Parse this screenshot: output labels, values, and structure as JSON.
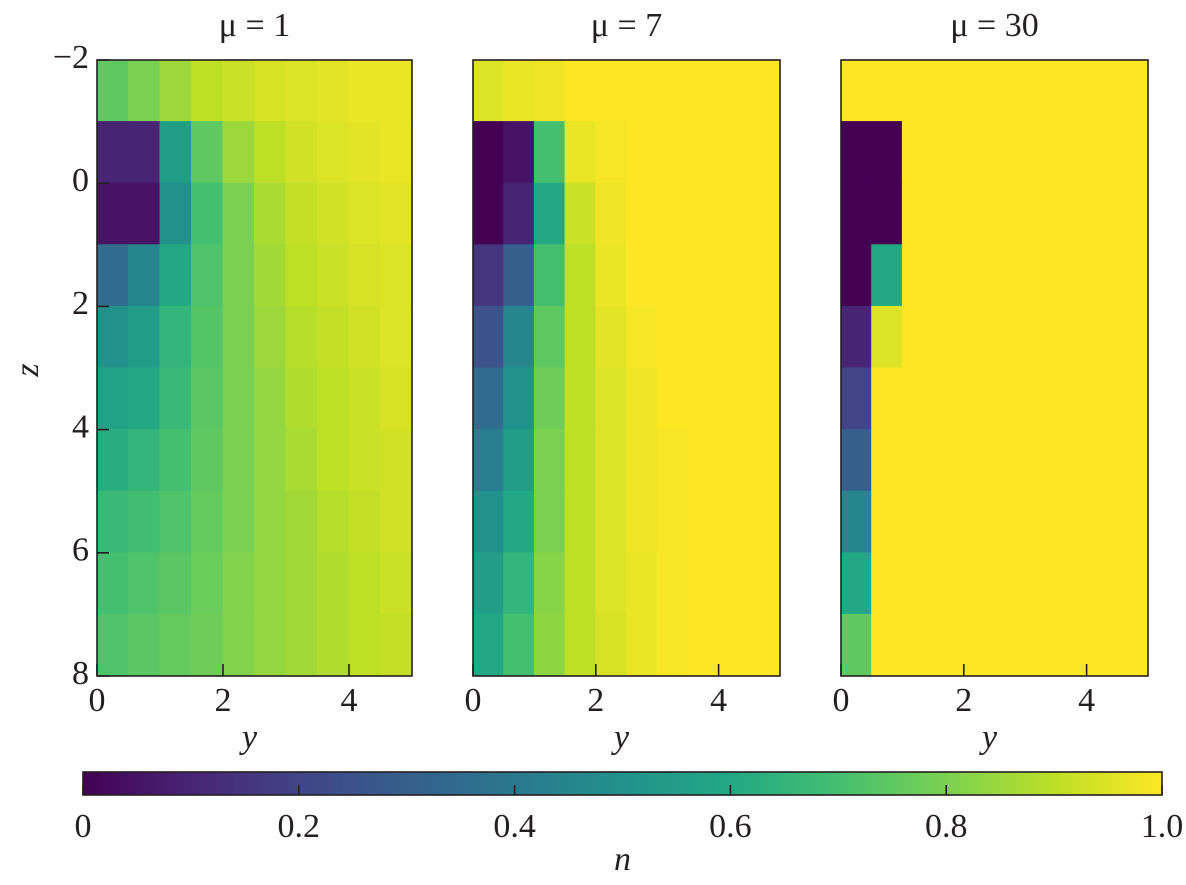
{
  "chart_data": [
    {
      "type": "heatmap",
      "title": "μ = 1",
      "xlabel": "y",
      "ylabel": "z",
      "colormap": "viridis",
      "xlim": [
        0,
        5
      ],
      "ylim": [
        -2,
        8
      ],
      "xticks": [
        0,
        2,
        4
      ],
      "yticks": [
        {
          "value": -2,
          "label": "−2"
        },
        0,
        2,
        4,
        6,
        8
      ],
      "x": [
        0.25,
        0.75,
        1.25,
        1.75,
        2.25,
        2.75,
        3.25,
        3.75,
        4.25,
        4.75
      ],
      "y": [
        -1.5,
        -0.5,
        0.5,
        1.5,
        2.5,
        3.5,
        4.5,
        5.5,
        6.5,
        7.5
      ],
      "values": [
        [
          0.75,
          0.8,
          0.85,
          0.9,
          0.92,
          0.94,
          0.95,
          0.96,
          0.97,
          0.97
        ],
        [
          0.1,
          0.1,
          0.55,
          0.75,
          0.85,
          0.9,
          0.93,
          0.95,
          0.96,
          0.97
        ],
        [
          0.05,
          0.05,
          0.5,
          0.7,
          0.8,
          0.87,
          0.91,
          0.93,
          0.95,
          0.96
        ],
        [
          0.35,
          0.45,
          0.6,
          0.72,
          0.8,
          0.86,
          0.9,
          0.92,
          0.94,
          0.95
        ],
        [
          0.5,
          0.55,
          0.65,
          0.73,
          0.8,
          0.85,
          0.89,
          0.91,
          0.93,
          0.95
        ],
        [
          0.57,
          0.6,
          0.67,
          0.74,
          0.8,
          0.84,
          0.88,
          0.9,
          0.92,
          0.94
        ],
        [
          0.62,
          0.65,
          0.7,
          0.75,
          0.8,
          0.84,
          0.87,
          0.9,
          0.92,
          0.93
        ],
        [
          0.67,
          0.69,
          0.72,
          0.76,
          0.8,
          0.84,
          0.86,
          0.89,
          0.91,
          0.93
        ],
        [
          0.7,
          0.72,
          0.74,
          0.77,
          0.81,
          0.84,
          0.86,
          0.88,
          0.9,
          0.92
        ],
        [
          0.72,
          0.74,
          0.76,
          0.78,
          0.81,
          0.84,
          0.86,
          0.88,
          0.9,
          0.91
        ]
      ]
    },
    {
      "type": "heatmap",
      "title": "μ = 7",
      "xlabel": "y",
      "colormap": "viridis",
      "xlim": [
        0,
        5
      ],
      "ylim": [
        -2,
        8
      ],
      "xticks": [
        0,
        2,
        4
      ],
      "x": [
        0.25,
        0.75,
        1.25,
        1.75,
        2.25,
        2.75,
        3.25,
        3.75,
        4.25,
        4.75
      ],
      "y": [
        -1.5,
        -0.5,
        0.5,
        1.5,
        2.5,
        3.5,
        4.5,
        5.5,
        6.5,
        7.5
      ],
      "values": [
        [
          0.95,
          0.97,
          0.98,
          1,
          1,
          1,
          1,
          1,
          1,
          1
        ],
        [
          0,
          0.05,
          0.7,
          0.97,
          0.99,
          1,
          1,
          1,
          1,
          1
        ],
        [
          0,
          0.1,
          0.6,
          0.92,
          0.98,
          1,
          1,
          1,
          1,
          1
        ],
        [
          0.15,
          0.3,
          0.7,
          0.9,
          0.97,
          1,
          1,
          1,
          1,
          1
        ],
        [
          0.25,
          0.45,
          0.75,
          0.9,
          0.96,
          0.99,
          1,
          1,
          1,
          1
        ],
        [
          0.35,
          0.5,
          0.78,
          0.9,
          0.95,
          0.98,
          1,
          1,
          1,
          1
        ],
        [
          0.42,
          0.55,
          0.8,
          0.9,
          0.95,
          0.98,
          0.99,
          1,
          1,
          1
        ],
        [
          0.5,
          0.6,
          0.8,
          0.9,
          0.95,
          0.98,
          0.99,
          1,
          1,
          1
        ],
        [
          0.55,
          0.65,
          0.82,
          0.9,
          0.95,
          0.97,
          0.99,
          1,
          1,
          1
        ],
        [
          0.6,
          0.7,
          0.83,
          0.9,
          0.94,
          0.97,
          0.99,
          1,
          1,
          1
        ]
      ]
    },
    {
      "type": "heatmap",
      "title": "μ = 30",
      "xlabel": "y",
      "colormap": "viridis",
      "xlim": [
        0,
        5
      ],
      "ylim": [
        -2,
        8
      ],
      "xticks": [
        0,
        2,
        4
      ],
      "x": [
        0.25,
        0.75,
        1.25,
        1.75,
        2.25,
        2.75,
        3.25,
        3.75,
        4.25,
        4.75
      ],
      "y": [
        -1.5,
        -0.5,
        0.5,
        1.5,
        2.5,
        3.5,
        4.5,
        5.5,
        6.5,
        7.5
      ],
      "values": [
        [
          1,
          1,
          1,
          1,
          1,
          1,
          1,
          1,
          1,
          1
        ],
        [
          0,
          0,
          1,
          1,
          1,
          1,
          1,
          1,
          1,
          1
        ],
        [
          0,
          0,
          1,
          1,
          1,
          1,
          1,
          1,
          1,
          1
        ],
        [
          0,
          0.6,
          1,
          1,
          1,
          1,
          1,
          1,
          1,
          1
        ],
        [
          0.1,
          0.95,
          1,
          1,
          1,
          1,
          1,
          1,
          1,
          1
        ],
        [
          0.2,
          1,
          1,
          1,
          1,
          1,
          1,
          1,
          1,
          1
        ],
        [
          0.3,
          1,
          1,
          1,
          1,
          1,
          1,
          1,
          1,
          1
        ],
        [
          0.45,
          1,
          1,
          1,
          1,
          1,
          1,
          1,
          1,
          1
        ],
        [
          0.6,
          1,
          1,
          1,
          1,
          1,
          1,
          1,
          1,
          1
        ],
        [
          0.75,
          1,
          1,
          1,
          1,
          1,
          1,
          1,
          1,
          1
        ]
      ]
    },
    {
      "type": "colorbar",
      "label": "n",
      "colormap": "viridis",
      "lim": [
        0,
        1
      ],
      "ticks": [
        0,
        0.2,
        0.4,
        0.6,
        0.8,
        {
          "value": 1,
          "label": "1.0"
        }
      ]
    }
  ]
}
